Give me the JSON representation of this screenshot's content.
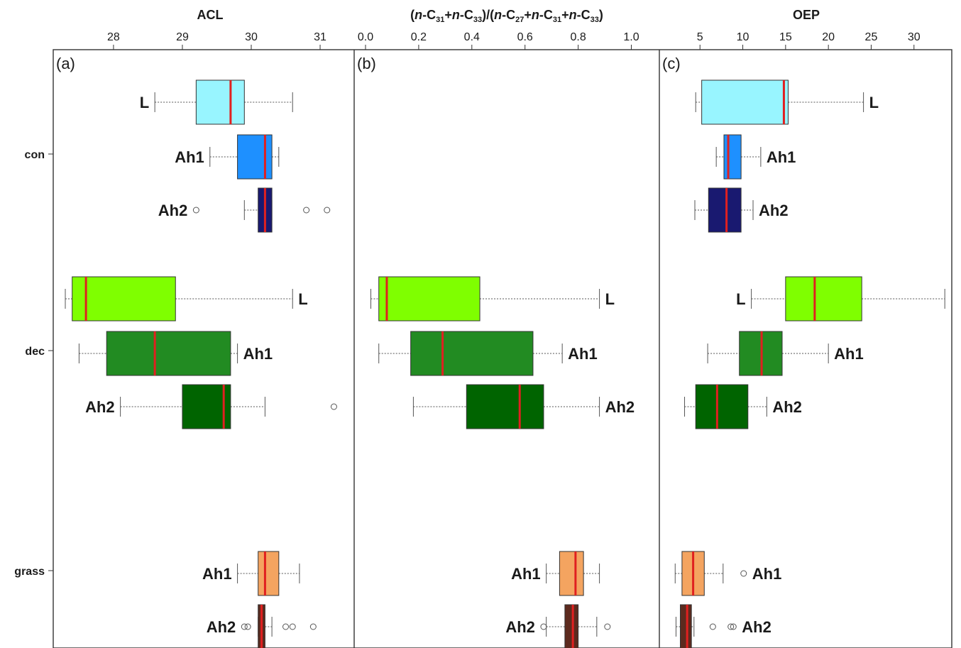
{
  "figure": {
    "group_labels": [
      "con",
      "dec",
      "grass"
    ]
  },
  "chart_data": [
    {
      "type": "box",
      "panel_label": "(a)",
      "title": "ACL",
      "xlabel": "",
      "xlim": [
        27.3,
        31.35
      ],
      "ticks": [
        28,
        29,
        30,
        31
      ],
      "tick_labels": [
        "28",
        "29",
        "30",
        "31"
      ],
      "boxes": [
        {
          "group": "con",
          "label": "L",
          "label_side": "left",
          "color": "#98f5ff",
          "whisker_low": 28.6,
          "q1": 29.2,
          "median": 29.7,
          "q3": 29.9,
          "whisker_high": 30.6,
          "outliers": []
        },
        {
          "group": "con",
          "label": "Ah1",
          "label_side": "left",
          "color": "#1e90ff",
          "whisker_low": 29.4,
          "q1": 29.8,
          "median": 30.2,
          "q3": 30.3,
          "whisker_high": 30.4,
          "outliers": []
        },
        {
          "group": "con",
          "label": "Ah2",
          "label_side": "left",
          "color": "#191970",
          "whisker_low": 29.9,
          "q1": 30.1,
          "median": 30.2,
          "q3": 30.3,
          "whisker_high": 30.3,
          "outliers": [
            29.2,
            30.8,
            31.1
          ]
        },
        {
          "group": "dec",
          "label": "L",
          "label_side": "right",
          "color": "#7fff00",
          "whisker_low": 27.3,
          "q1": 27.4,
          "median": 27.6,
          "q3": 28.9,
          "whisker_high": 30.6,
          "outliers": []
        },
        {
          "group": "dec",
          "label": "Ah1",
          "label_side": "right",
          "color": "#228b22",
          "whisker_low": 27.5,
          "q1": 27.9,
          "median": 28.6,
          "q3": 29.7,
          "whisker_high": 29.8,
          "outliers": []
        },
        {
          "group": "dec",
          "label": "Ah2",
          "label_side": "left",
          "color": "#006400",
          "whisker_low": 28.1,
          "q1": 29.0,
          "median": 29.6,
          "q3": 29.7,
          "whisker_high": 30.2,
          "outliers": [
            31.2
          ]
        },
        {
          "group": "grass",
          "label": "Ah1",
          "label_side": "left",
          "color": "#f4a460",
          "whisker_low": 29.8,
          "q1": 30.1,
          "median": 30.2,
          "q3": 30.4,
          "whisker_high": 30.7,
          "outliers": []
        },
        {
          "group": "grass",
          "label": "Ah2",
          "label_side": "left",
          "color": "#5c2a1e",
          "whisker_low": 30.1,
          "q1": 30.1,
          "median": 30.15,
          "q3": 30.2,
          "whisker_high": 30.3,
          "outliers": [
            29.9,
            29.95,
            30.5,
            30.6,
            30.9
          ]
        }
      ]
    },
    {
      "type": "box",
      "panel_label": "(b)",
      "title": "(n-C31+n-C33)/(n-C27+n-C31+n-C33)",
      "xlabel": "",
      "xlim": [
        0.0,
        1.06
      ],
      "ticks": [
        0.0,
        0.2,
        0.4,
        0.6,
        0.8,
        1.0
      ],
      "tick_labels": [
        "0.0",
        "0.2",
        "0.4",
        "0.6",
        "0.8",
        "1.0"
      ],
      "boxes": [
        {
          "group": "dec",
          "label": "L",
          "label_side": "right",
          "color": "#7fff00",
          "whisker_low": 0.02,
          "q1": 0.05,
          "median": 0.08,
          "q3": 0.43,
          "whisker_high": 0.88,
          "outliers": []
        },
        {
          "group": "dec",
          "label": "Ah1",
          "label_side": "right",
          "color": "#228b22",
          "whisker_low": 0.05,
          "q1": 0.17,
          "median": 0.29,
          "q3": 0.63,
          "whisker_high": 0.74,
          "outliers": []
        },
        {
          "group": "dec",
          "label": "Ah2",
          "label_side": "right",
          "color": "#006400",
          "whisker_low": 0.18,
          "q1": 0.38,
          "median": 0.58,
          "q3": 0.67,
          "whisker_high": 0.88,
          "outliers": []
        },
        {
          "group": "grass",
          "label": "Ah1",
          "label_side": "left",
          "color": "#f4a460",
          "whisker_low": 0.68,
          "q1": 0.73,
          "median": 0.79,
          "q3": 0.82,
          "whisker_high": 0.88,
          "outliers": []
        },
        {
          "group": "grass",
          "label": "Ah2",
          "label_side": "left",
          "color": "#5c2a1e",
          "whisker_low": 0.68,
          "q1": 0.75,
          "median": 0.78,
          "q3": 0.8,
          "whisker_high": 0.87,
          "outliers": [
            0.67,
            0.91
          ]
        }
      ]
    },
    {
      "type": "box",
      "panel_label": "(c)",
      "title": "OEP",
      "xlabel": "",
      "xlim": [
        1.0,
        34.0
      ],
      "ticks": [
        5,
        10,
        15,
        20,
        25,
        30
      ],
      "tick_labels": [
        "5",
        "10",
        "15",
        "20",
        "25",
        "30"
      ],
      "boxes": [
        {
          "group": "con",
          "label": "L",
          "label_side": "right",
          "color": "#98f5ff",
          "whisker_low": 4.5,
          "q1": 5.2,
          "median": 14.8,
          "q3": 15.3,
          "whisker_high": 24.1,
          "outliers": []
        },
        {
          "group": "con",
          "label": "Ah1",
          "label_side": "right",
          "color": "#1e90ff",
          "whisker_low": 6.9,
          "q1": 7.8,
          "median": 8.3,
          "q3": 9.8,
          "whisker_high": 12.1,
          "outliers": []
        },
        {
          "group": "con",
          "label": "Ah2",
          "label_side": "right",
          "color": "#191970",
          "whisker_low": 4.4,
          "q1": 6.0,
          "median": 8.1,
          "q3": 9.8,
          "whisker_high": 11.2,
          "outliers": []
        },
        {
          "group": "dec",
          "label": "L",
          "label_side": "left",
          "color": "#7fff00",
          "whisker_low": 11.0,
          "q1": 15.0,
          "median": 18.4,
          "q3": 23.9,
          "whisker_high": 33.6,
          "outliers": []
        },
        {
          "group": "dec",
          "label": "Ah1",
          "label_side": "right",
          "color": "#228b22",
          "whisker_low": 5.9,
          "q1": 9.6,
          "median": 12.2,
          "q3": 14.6,
          "whisker_high": 20.0,
          "outliers": []
        },
        {
          "group": "dec",
          "label": "Ah2",
          "label_side": "right",
          "color": "#006400",
          "whisker_low": 3.2,
          "q1": 4.5,
          "median": 7.0,
          "q3": 10.6,
          "whisker_high": 12.8,
          "outliers": []
        },
        {
          "group": "grass",
          "label": "Ah1",
          "label_side": "right",
          "color": "#f4a460",
          "whisker_low": 2.1,
          "q1": 2.9,
          "median": 4.2,
          "q3": 5.5,
          "whisker_high": 7.7,
          "outliers": [
            10.1
          ]
        },
        {
          "group": "grass",
          "label": "Ah2",
          "label_side": "right",
          "color": "#5c2a1e",
          "whisker_low": 2.2,
          "q1": 2.7,
          "median": 3.5,
          "q3": 4.0,
          "whisker_high": 4.3,
          "outliers": [
            6.5,
            8.6,
            8.9
          ]
        }
      ]
    }
  ]
}
